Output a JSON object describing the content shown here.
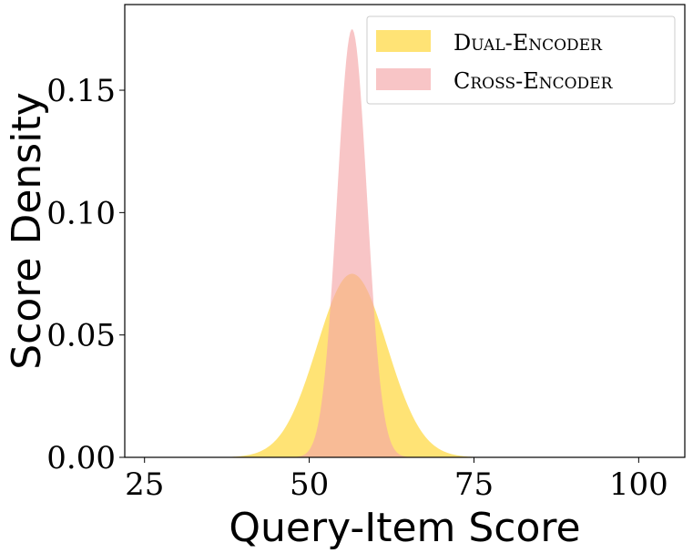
{
  "chart_data": {
    "type": "area",
    "xlabel": "Query-Item Score",
    "ylabel": "Score Density",
    "xlim": [
      22,
      107
    ],
    "ylim": [
      0,
      0.185
    ],
    "xticks": [
      25,
      50,
      75,
      100
    ],
    "yticks": [
      0.0,
      0.05,
      0.1,
      0.15
    ],
    "xtick_labels": [
      "25",
      "50",
      "75",
      "100"
    ],
    "ytick_labels": [
      "0.00",
      "0.05",
      "0.10",
      "0.15"
    ],
    "grid": false,
    "legend_position": "top-right",
    "x_range": [
      25,
      104
    ],
    "series": [
      {
        "name": "Dual-Encoder",
        "distribution": "normal",
        "mean": 56.5,
        "peak_density": 0.075,
        "color": "#FFE066",
        "opacity": 0.9
      },
      {
        "name": "Cross-Encoder",
        "distribution": "normal",
        "mean": 56.5,
        "peak_density": 0.175,
        "color": "#F4A6A8",
        "opacity": 0.65
      }
    ]
  }
}
